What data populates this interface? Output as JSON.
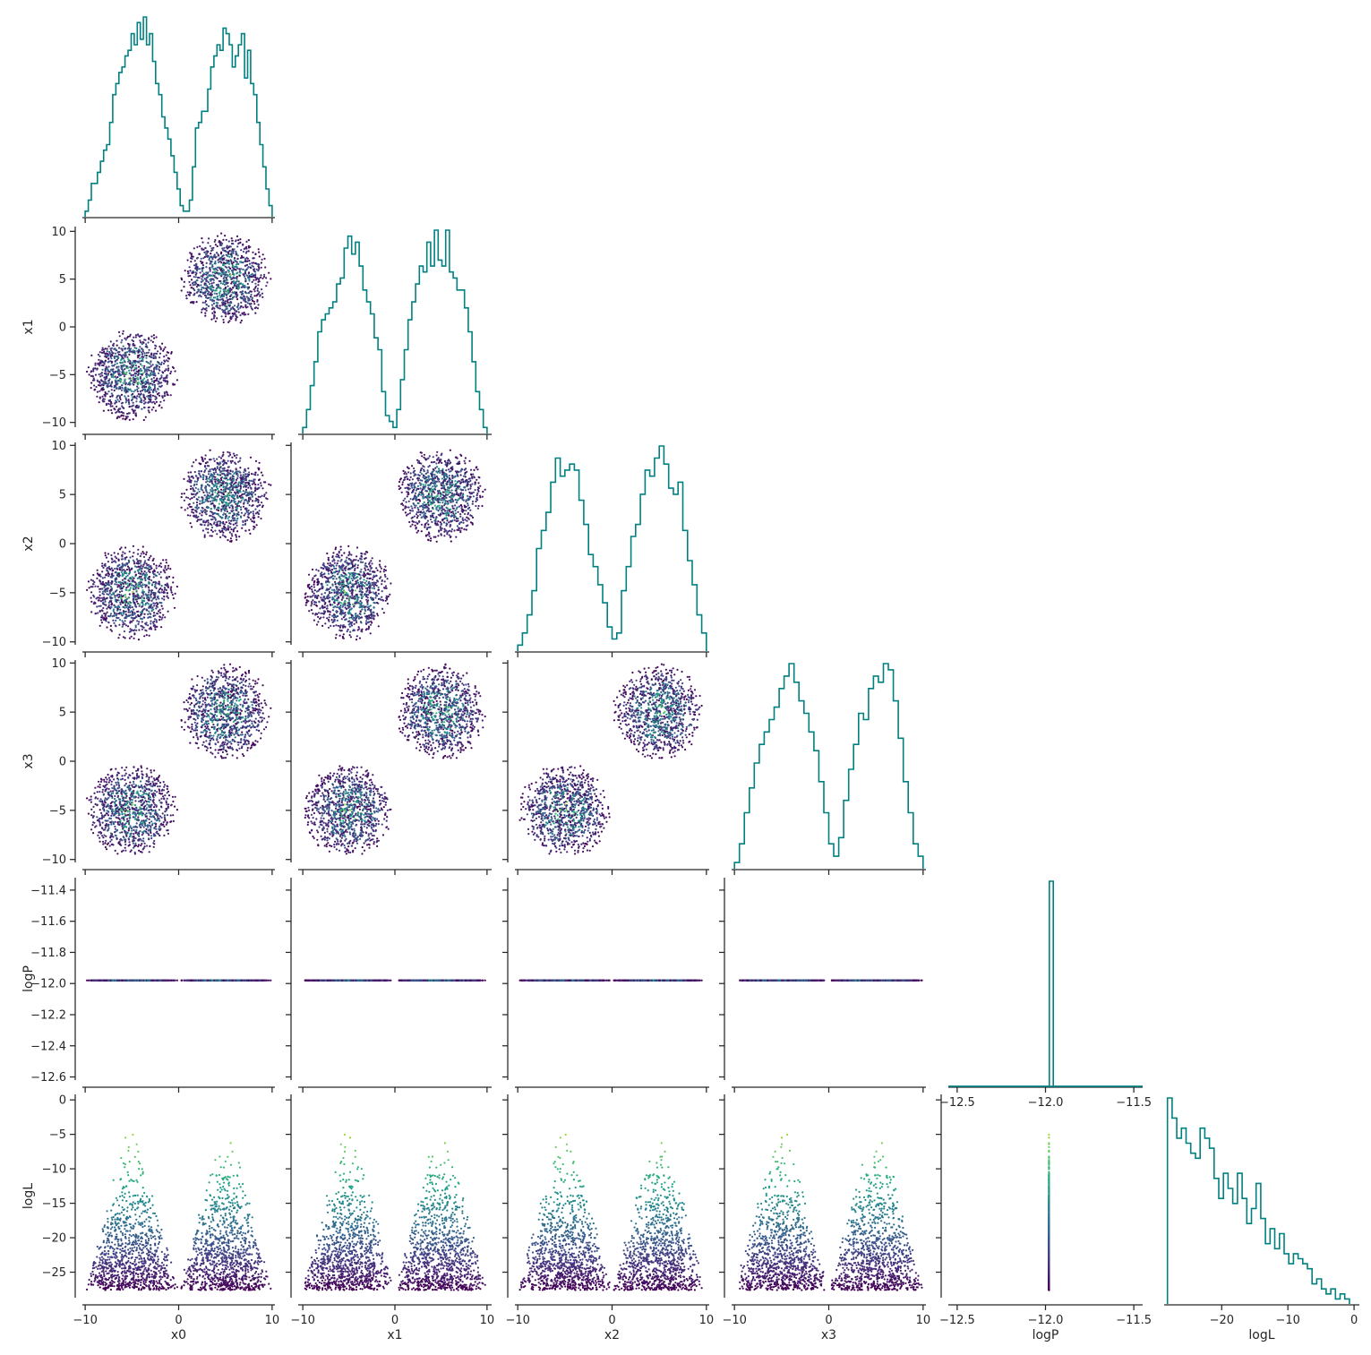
{
  "chart_data": {
    "type": "corner-plot",
    "parameters": [
      "x0",
      "x1",
      "x2",
      "x3",
      "logP",
      "logL"
    ],
    "axis_labels": {
      "bottom": [
        "x0",
        "x1",
        "x2",
        "x3",
        "logP",
        "logL"
      ],
      "left": [
        "",
        "x1",
        "x2",
        "x3",
        "logP",
        "logL"
      ]
    },
    "ranges": {
      "x0": [
        -10.3,
        10.3
      ],
      "x1": [
        -10.5,
        10.5
      ],
      "x2": [
        -10.3,
        10.3
      ],
      "x3": [
        -10.3,
        10.3
      ],
      "logP": [
        -12.62,
        -11.32
      ],
      "logP_x": [
        -12.55,
        -11.45
      ],
      "logL": [
        -28.7,
        0.8
      ]
    },
    "ticks": {
      "x": [
        -10,
        0,
        10
      ],
      "x_labels": [
        "−10",
        "0",
        "10"
      ],
      "xy": [
        -10,
        -5,
        0,
        5,
        10
      ],
      "xy_labels": [
        "−10",
        "−5",
        "0",
        "5",
        "10"
      ],
      "logP_y": [
        -12.6,
        -12.4,
        -12.2,
        -12.0,
        -11.8,
        -11.6,
        -11.4
      ],
      "logP_y_labels": [
        "−12.6",
        "−12.4",
        "−12.2",
        "−12.0",
        "−11.8",
        "−11.6",
        "−11.4"
      ],
      "logP_x": [
        -12.5,
        -12.0,
        -11.5
      ],
      "logP_x_labels": [
        "−12.5",
        "−12.0",
        "−11.5"
      ],
      "logL_y": [
        0,
        -5,
        -10,
        -15,
        -20,
        -25
      ],
      "logL_y_labels": [
        "0",
        "−5",
        "−10",
        "−15",
        "−20",
        "−25"
      ],
      "logL_x": [
        -20,
        -10,
        0
      ],
      "logL_x_labels": [
        "−20",
        "−10",
        "0"
      ]
    },
    "samples": {
      "count": 2000,
      "clusters": [
        {
          "center": -5,
          "radius": 5
        },
        {
          "center": 5,
          "radius": 5
        }
      ],
      "logP_constant": -11.98,
      "logL_range": [
        -27.6,
        -1.0
      ]
    },
    "histograms": {
      "x0": [
        1,
        3,
        6,
        6,
        8,
        10,
        12,
        13,
        17,
        22,
        24,
        26,
        27,
        29,
        30,
        33,
        31,
        35,
        32,
        36,
        31,
        33,
        28,
        24,
        22,
        18,
        16,
        14,
        11,
        8,
        5,
        2,
        1,
        1,
        3,
        9,
        16,
        17,
        19,
        19,
        23,
        27,
        29,
        31,
        30,
        34,
        33,
        31,
        27,
        29,
        31,
        33,
        25,
        30,
        24,
        22,
        17,
        13,
        9,
        5,
        2
      ],
      "x1": [
        1,
        4,
        8,
        12,
        17,
        19,
        20,
        21,
        22,
        25,
        26,
        31,
        33,
        30,
        32,
        28,
        24,
        22,
        20,
        16,
        14,
        7,
        3,
        2,
        1,
        4,
        9,
        14,
        19,
        22,
        25,
        28,
        27,
        32,
        28,
        34,
        29,
        28,
        34,
        27,
        26,
        24,
        24,
        21,
        17,
        12,
        7,
        4,
        1
      ],
      "x2": [
        1,
        3,
        6,
        10,
        17,
        20,
        23,
        28,
        32,
        29,
        30,
        31,
        30,
        25,
        21,
        16,
        14,
        11,
        8,
        4,
        2,
        3,
        10,
        14,
        19,
        21,
        26,
        30,
        29,
        32,
        34,
        31,
        27,
        26,
        28,
        20,
        15,
        11,
        6,
        3
      ],
      "x3": [
        1,
        4,
        9,
        13,
        17,
        20,
        22,
        24,
        26,
        29,
        31,
        33,
        30,
        27,
        25,
        22,
        19,
        14,
        9,
        4,
        2,
        5,
        11,
        16,
        20,
        25,
        24,
        29,
        31,
        30,
        33,
        32,
        27,
        21,
        14,
        9,
        4,
        2
      ],
      "logP": [
        0,
        0,
        0,
        0,
        0,
        0,
        0,
        0,
        0,
        0,
        0,
        0,
        0,
        0,
        0,
        0,
        0,
        0,
        0,
        0,
        0,
        0,
        0,
        0,
        0,
        0,
        100,
        0,
        0,
        0,
        0,
        0,
        0,
        0,
        0,
        0,
        0,
        0,
        0,
        0,
        0,
        0,
        0,
        0,
        0,
        0,
        0,
        0,
        0,
        0
      ],
      "logL": [
        41,
        37,
        33,
        35,
        32,
        30,
        29,
        35,
        33,
        31,
        25,
        21,
        26,
        23,
        20,
        26,
        21,
        16,
        19,
        24,
        17,
        12,
        15,
        11,
        14,
        10,
        8,
        10,
        9,
        8,
        7,
        4,
        5,
        3,
        2,
        3,
        1,
        2,
        1
      ]
    },
    "colors": {
      "histogram": "#008080",
      "axis": "#262626",
      "colormap": "viridis"
    },
    "grid": false,
    "legend": "none"
  }
}
